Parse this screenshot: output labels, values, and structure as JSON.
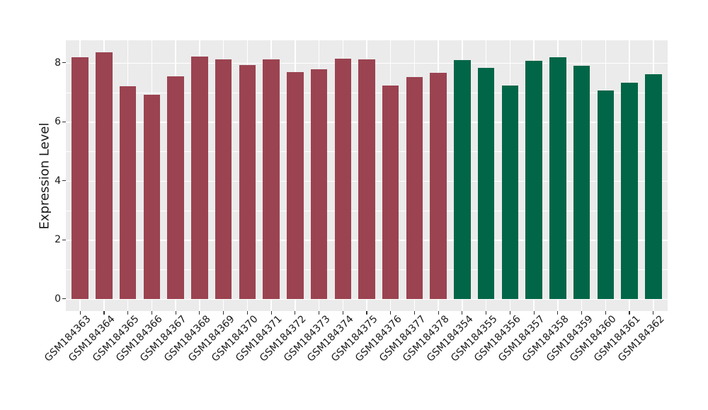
{
  "chart_data": {
    "type": "bar",
    "title": "",
    "xlabel": "",
    "ylabel": "Expression Level",
    "yticks": [
      0,
      2,
      4,
      6,
      8
    ],
    "minor_yticks": [
      1,
      3,
      5,
      7
    ],
    "ylim": [
      0,
      8.8
    ],
    "panel_range": [
      -0.41,
      8.76
    ],
    "grid": true,
    "legend": false,
    "colors": {
      "panel_background": "#ebebeb",
      "grid": "#ffffff",
      "tick_mark": "#333333",
      "axis_text": "#1a1a1a",
      "red_group": "#9b4351",
      "green_group": "#016647"
    },
    "series": [
      {
        "name": "red-group",
        "color": "#9b4351",
        "points": [
          {
            "label": "GSM184363",
            "value": 8.19
          },
          {
            "label": "GSM184364",
            "value": 8.36
          },
          {
            "label": "GSM184365",
            "value": 7.21
          },
          {
            "label": "GSM184366",
            "value": 6.92
          },
          {
            "label": "GSM184367",
            "value": 7.53
          },
          {
            "label": "GSM184368",
            "value": 8.21
          },
          {
            "label": "GSM184369",
            "value": 8.12
          },
          {
            "label": "GSM184370",
            "value": 7.93
          },
          {
            "label": "GSM184371",
            "value": 8.11
          },
          {
            "label": "GSM184372",
            "value": 7.68
          },
          {
            "label": "GSM184373",
            "value": 7.78
          },
          {
            "label": "GSM184374",
            "value": 8.14
          },
          {
            "label": "GSM184375",
            "value": 8.11
          },
          {
            "label": "GSM184376",
            "value": 7.23
          },
          {
            "label": "GSM184377",
            "value": 7.52
          },
          {
            "label": "GSM184378",
            "value": 7.67
          }
        ]
      },
      {
        "name": "green-group",
        "color": "#016647",
        "points": [
          {
            "label": "GSM184354",
            "value": 8.08
          },
          {
            "label": "GSM184355",
            "value": 7.82
          },
          {
            "label": "GSM184356",
            "value": 7.23
          },
          {
            "label": "GSM184357",
            "value": 8.06
          },
          {
            "label": "GSM184358",
            "value": 8.18
          },
          {
            "label": "GSM184359",
            "value": 7.9
          },
          {
            "label": "GSM184360",
            "value": 7.05
          },
          {
            "label": "GSM184361",
            "value": 7.32
          },
          {
            "label": "GSM184362",
            "value": 7.62
          }
        ]
      }
    ]
  }
}
